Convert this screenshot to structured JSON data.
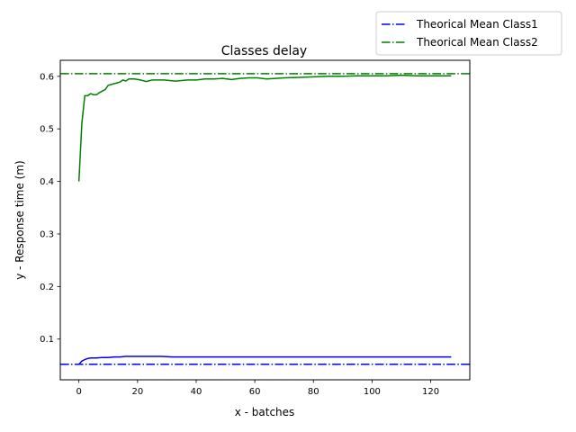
{
  "chart_data": {
    "type": "line",
    "title": "Classes delay",
    "xlabel": "x - batches",
    "ylabel": "y - Response time (m)",
    "xlim": [
      -6.35,
      133.35
    ],
    "ylim": [
      0.0225,
      0.6305
    ],
    "xticks": [
      0,
      20,
      40,
      60,
      80,
      100,
      120
    ],
    "yticks": [
      0.1,
      0.2,
      0.3,
      0.4,
      0.5,
      0.6
    ],
    "grid": false,
    "legend_position": "top-right (outside plot)",
    "series": [
      {
        "color": "#0000ff",
        "style": "solid",
        "points": [
          [
            0,
            0.052
          ],
          [
            1,
            0.058
          ],
          [
            2,
            0.061
          ],
          [
            3,
            0.063
          ],
          [
            4,
            0.064
          ],
          [
            6,
            0.064
          ],
          [
            8,
            0.065
          ],
          [
            10,
            0.065
          ],
          [
            12,
            0.066
          ],
          [
            14,
            0.066
          ],
          [
            16,
            0.067
          ],
          [
            20,
            0.067
          ],
          [
            24,
            0.067
          ],
          [
            28,
            0.067
          ],
          [
            32,
            0.066
          ],
          [
            36,
            0.066
          ],
          [
            40,
            0.066
          ],
          [
            50,
            0.066
          ],
          [
            60,
            0.066
          ],
          [
            70,
            0.066
          ],
          [
            80,
            0.066
          ],
          [
            90,
            0.066
          ],
          [
            100,
            0.066
          ],
          [
            110,
            0.066
          ],
          [
            120,
            0.066
          ],
          [
            127,
            0.066
          ]
        ]
      },
      {
        "color": "#008000",
        "style": "solid",
        "points": [
          [
            0,
            0.4
          ],
          [
            1,
            0.51
          ],
          [
            2,
            0.563
          ],
          [
            3,
            0.563
          ],
          [
            4,
            0.567
          ],
          [
            5,
            0.565
          ],
          [
            6,
            0.565
          ],
          [
            7,
            0.569
          ],
          [
            8,
            0.572
          ],
          [
            9,
            0.575
          ],
          [
            10,
            0.583
          ],
          [
            12,
            0.586
          ],
          [
            14,
            0.589
          ],
          [
            15,
            0.593
          ],
          [
            16,
            0.591
          ],
          [
            17,
            0.595
          ],
          [
            19,
            0.595
          ],
          [
            21,
            0.593
          ],
          [
            23,
            0.59
          ],
          [
            25,
            0.593
          ],
          [
            27,
            0.593
          ],
          [
            29,
            0.593
          ],
          [
            31,
            0.592
          ],
          [
            33,
            0.591
          ],
          [
            35,
            0.592
          ],
          [
            37,
            0.593
          ],
          [
            40,
            0.593
          ],
          [
            43,
            0.595
          ],
          [
            46,
            0.595
          ],
          [
            49,
            0.596
          ],
          [
            52,
            0.594
          ],
          [
            55,
            0.596
          ],
          [
            58,
            0.597
          ],
          [
            61,
            0.597
          ],
          [
            64,
            0.595
          ],
          [
            67,
            0.596
          ],
          [
            70,
            0.597
          ],
          [
            75,
            0.598
          ],
          [
            80,
            0.599
          ],
          [
            85,
            0.6
          ],
          [
            90,
            0.6
          ],
          [
            95,
            0.601
          ],
          [
            100,
            0.601
          ],
          [
            105,
            0.601
          ],
          [
            110,
            0.602
          ],
          [
            115,
            0.601
          ],
          [
            120,
            0.601
          ],
          [
            127,
            0.601
          ]
        ]
      },
      {
        "name": "Theorical Mean Class1",
        "color": "#0000ff",
        "style": "dashdot",
        "y": 0.052
      },
      {
        "name": "Theorical Mean Class2",
        "color": "#008000",
        "style": "dashdot",
        "y": 0.605
      }
    ]
  }
}
